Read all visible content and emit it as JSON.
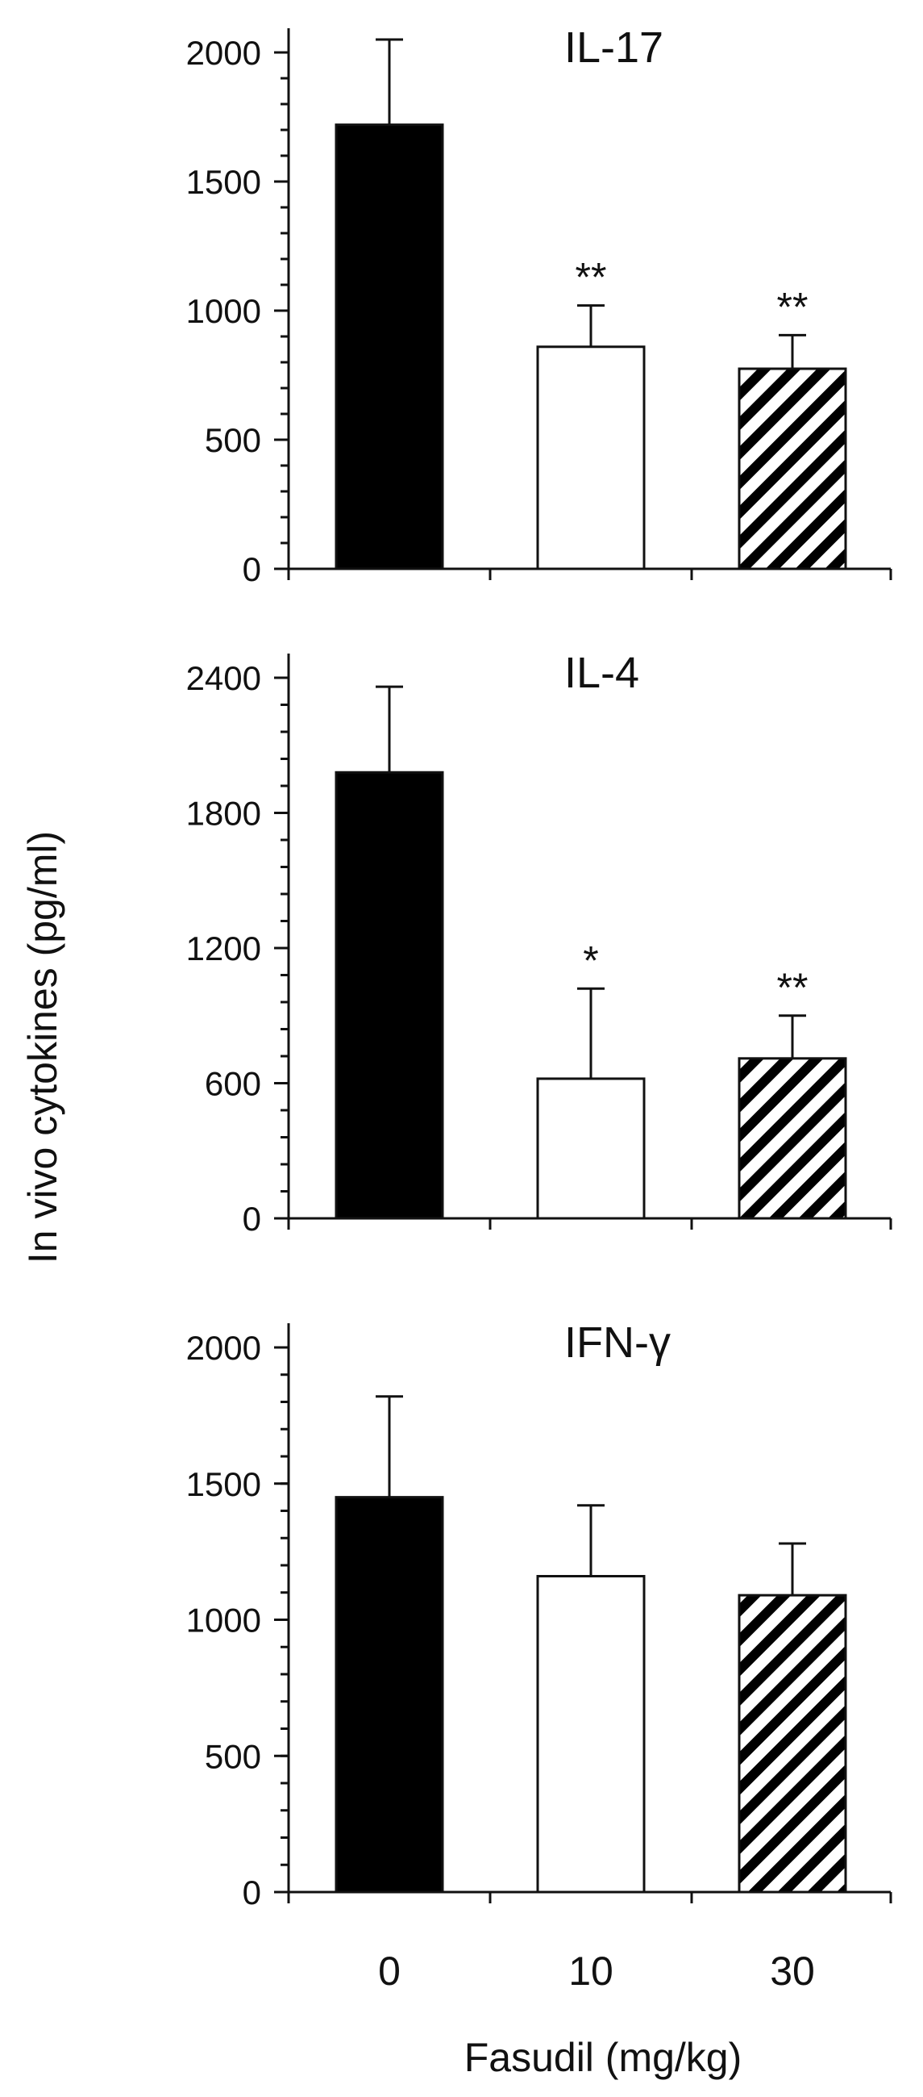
{
  "chart_data": [
    {
      "type": "bar",
      "title": "IL-17",
      "categories": [
        "0",
        "10",
        "30"
      ],
      "values": [
        1720,
        860,
        775
      ],
      "errors": [
        330,
        160,
        130
      ],
      "significance": [
        "",
        "**",
        "**"
      ],
      "ylim": [
        0,
        2000
      ],
      "yticks": [
        0,
        500,
        1000,
        1500,
        2000
      ],
      "ytick_labels": [
        "0",
        "500",
        "1000",
        "1500",
        "2000"
      ],
      "y_minor_step": 100
    },
    {
      "type": "bar",
      "title": "IL-4",
      "categories": [
        "0",
        "10",
        "30"
      ],
      "values": [
        1980,
        620,
        710
      ],
      "errors": [
        380,
        400,
        190
      ],
      "significance": [
        "",
        "*",
        "**"
      ],
      "ylim": [
        0,
        2400
      ],
      "yticks": [
        0,
        600,
        1200,
        1800,
        2400
      ],
      "ytick_labels": [
        "0",
        "600",
        "1200",
        "1800",
        "2400"
      ],
      "y_minor_step": 120
    },
    {
      "type": "bar",
      "title": "IFN-γ",
      "categories": [
        "0",
        "10",
        "30"
      ],
      "values": [
        1450,
        1160,
        1090
      ],
      "errors": [
        370,
        260,
        190
      ],
      "significance": [
        "",
        "",
        ""
      ],
      "ylim": [
        0,
        2000
      ],
      "yticks": [
        0,
        500,
        1000,
        1500,
        2000
      ],
      "ytick_labels": [
        "0",
        "500",
        "1000",
        "1500",
        "2000"
      ],
      "y_minor_step": 100
    }
  ],
  "shared": {
    "ylabel": "In vivo cytokines (pg/ml)",
    "xlabel": "Fasudil (mg/kg)",
    "x_tick_labels": [
      "0",
      "10",
      "30"
    ],
    "bar_styles": [
      "solid-black",
      "white",
      "diagonal-hatch"
    ],
    "colors": {
      "ink": "#111111",
      "fill_dark": "#000000",
      "fill_light": "#ffffff"
    }
  }
}
